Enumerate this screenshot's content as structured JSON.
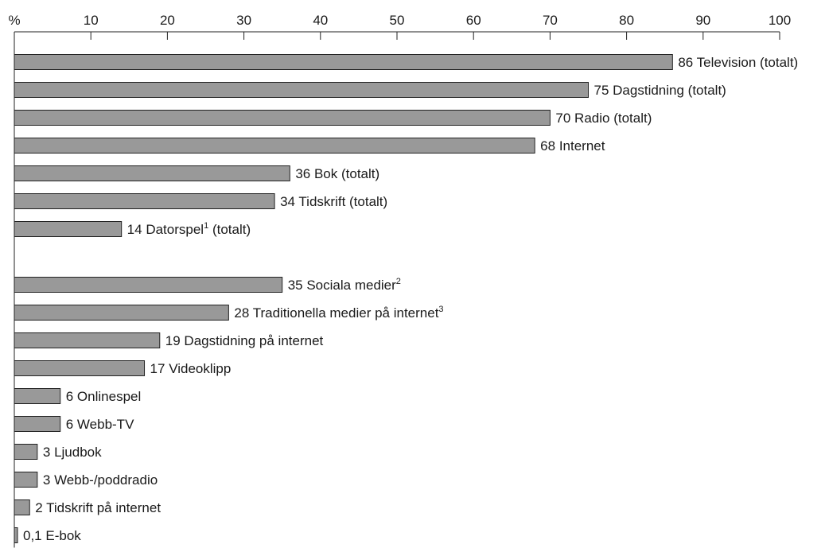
{
  "chart_data": {
    "type": "bar",
    "orientation": "horizontal",
    "unit_label": "%",
    "xlim": [
      0,
      100
    ],
    "ticks": [
      {
        "value": 0,
        "label": "%"
      },
      {
        "value": 10,
        "label": "10"
      },
      {
        "value": 20,
        "label": "20"
      },
      {
        "value": 30,
        "label": "30"
      },
      {
        "value": 40,
        "label": "40"
      },
      {
        "value": 50,
        "label": "50"
      },
      {
        "value": 60,
        "label": "60"
      },
      {
        "value": 70,
        "label": "70"
      },
      {
        "value": 80,
        "label": "80"
      },
      {
        "value": 90,
        "label": "90"
      },
      {
        "value": 100,
        "label": "100"
      }
    ],
    "bar_color": "#999999",
    "bar_border": "#222222",
    "groups": [
      {
        "bars": [
          {
            "value": 86,
            "value_label": "86",
            "label": "Television (totalt)",
            "sup": ""
          },
          {
            "value": 75,
            "value_label": "75",
            "label": "Dagstidning (totalt)",
            "sup": ""
          },
          {
            "value": 70,
            "value_label": "70",
            "label": "Radio (totalt)",
            "sup": ""
          },
          {
            "value": 68,
            "value_label": "68",
            "label": "Internet",
            "sup": ""
          },
          {
            "value": 36,
            "value_label": "36",
            "label": "Bok (totalt)",
            "sup": ""
          },
          {
            "value": 34,
            "value_label": "34",
            "label": "Tidskrift (totalt)",
            "sup": ""
          },
          {
            "value": 14,
            "value_label": "14",
            "label": "Datorspel",
            "sup": "1",
            "label_suffix": " (totalt)"
          }
        ]
      },
      {
        "bars": [
          {
            "value": 35,
            "value_label": "35",
            "label": "Sociala medier",
            "sup": "2"
          },
          {
            "value": 28,
            "value_label": "28",
            "label": "Traditionella medier på internet",
            "sup": "3"
          },
          {
            "value": 19,
            "value_label": "19",
            "label": "Dagstidning på internet",
            "sup": ""
          },
          {
            "value": 17,
            "value_label": "17",
            "label": "Videoklipp",
            "sup": ""
          },
          {
            "value": 6,
            "value_label": "6",
            "label": "Onlinespel",
            "sup": ""
          },
          {
            "value": 6,
            "value_label": "6",
            "label": "Webb-TV",
            "sup": ""
          },
          {
            "value": 3,
            "value_label": "3",
            "label": "Ljudbok",
            "sup": ""
          },
          {
            "value": 3,
            "value_label": "3",
            "label": "Webb-/poddradio",
            "sup": ""
          },
          {
            "value": 2,
            "value_label": "2",
            "label": "Tidskrift på internet",
            "sup": ""
          },
          {
            "value": 0.1,
            "value_label": "0,1",
            "label": "E-bok",
            "sup": ""
          }
        ]
      }
    ]
  }
}
